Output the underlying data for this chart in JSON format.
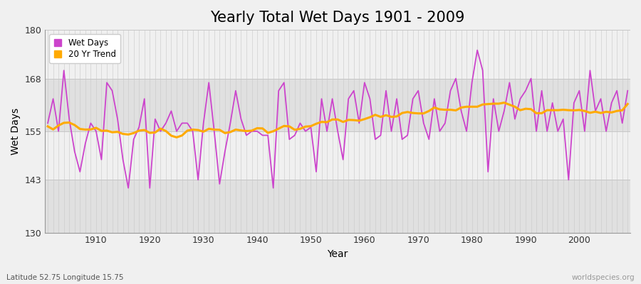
{
  "title": "Yearly Total Wet Days 1901 - 2009",
  "xlabel": "Year",
  "ylabel": "Wet Days",
  "years": [
    1901,
    1902,
    1903,
    1904,
    1905,
    1906,
    1907,
    1908,
    1909,
    1910,
    1911,
    1912,
    1913,
    1914,
    1915,
    1916,
    1917,
    1918,
    1919,
    1920,
    1921,
    1922,
    1923,
    1924,
    1925,
    1926,
    1927,
    1928,
    1929,
    1930,
    1931,
    1932,
    1933,
    1934,
    1935,
    1936,
    1937,
    1938,
    1939,
    1940,
    1941,
    1942,
    1943,
    1944,
    1945,
    1946,
    1947,
    1948,
    1949,
    1950,
    1951,
    1952,
    1953,
    1954,
    1955,
    1956,
    1957,
    1958,
    1959,
    1960,
    1961,
    1962,
    1963,
    1964,
    1965,
    1966,
    1967,
    1968,
    1969,
    1970,
    1971,
    1972,
    1973,
    1974,
    1975,
    1976,
    1977,
    1978,
    1979,
    1980,
    1981,
    1982,
    1983,
    1984,
    1985,
    1986,
    1987,
    1988,
    1989,
    1990,
    1991,
    1992,
    1993,
    1994,
    1995,
    1996,
    1997,
    1998,
    1999,
    2000,
    2001,
    2002,
    2003,
    2004,
    2005,
    2006,
    2007,
    2008,
    2009
  ],
  "wet_days": [
    157,
    163,
    155,
    170,
    158,
    150,
    145,
    152,
    157,
    155,
    148,
    167,
    165,
    158,
    148,
    141,
    153,
    156,
    163,
    141,
    158,
    155,
    157,
    160,
    155,
    157,
    157,
    155,
    143,
    157,
    167,
    155,
    142,
    150,
    157,
    165,
    158,
    154,
    155,
    155,
    154,
    154,
    141,
    165,
    167,
    153,
    154,
    157,
    155,
    156,
    145,
    163,
    155,
    163,
    155,
    148,
    163,
    165,
    157,
    167,
    163,
    153,
    154,
    165,
    155,
    163,
    153,
    154,
    163,
    165,
    157,
    153,
    163,
    155,
    157,
    165,
    168,
    160,
    155,
    167,
    175,
    170,
    145,
    163,
    155,
    160,
    167,
    158,
    163,
    165,
    168,
    155,
    165,
    155,
    162,
    155,
    158,
    143,
    162,
    165,
    155,
    170,
    160,
    163,
    155,
    162,
    165,
    157,
    165
  ],
  "ylim": [
    130,
    180
  ],
  "yticks": [
    130,
    143,
    155,
    168,
    180
  ],
  "line_color": "#cc44cc",
  "trend_color": "#ffaa00",
  "bg_color": "#f0f0f0",
  "plot_bg_color": "#f5f5f5",
  "band_color_light": "#e8e8e8",
  "band_color_dark": "#d8d8d8",
  "grid_color": "#cccccc",
  "legend_labels": [
    "Wet Days",
    "20 Yr Trend"
  ],
  "subtitle": "Latitude 52.75 Longitude 15.75",
  "watermark": "worldspecies.org",
  "title_fontsize": 15,
  "axis_fontsize": 10,
  "tick_fontsize": 9
}
